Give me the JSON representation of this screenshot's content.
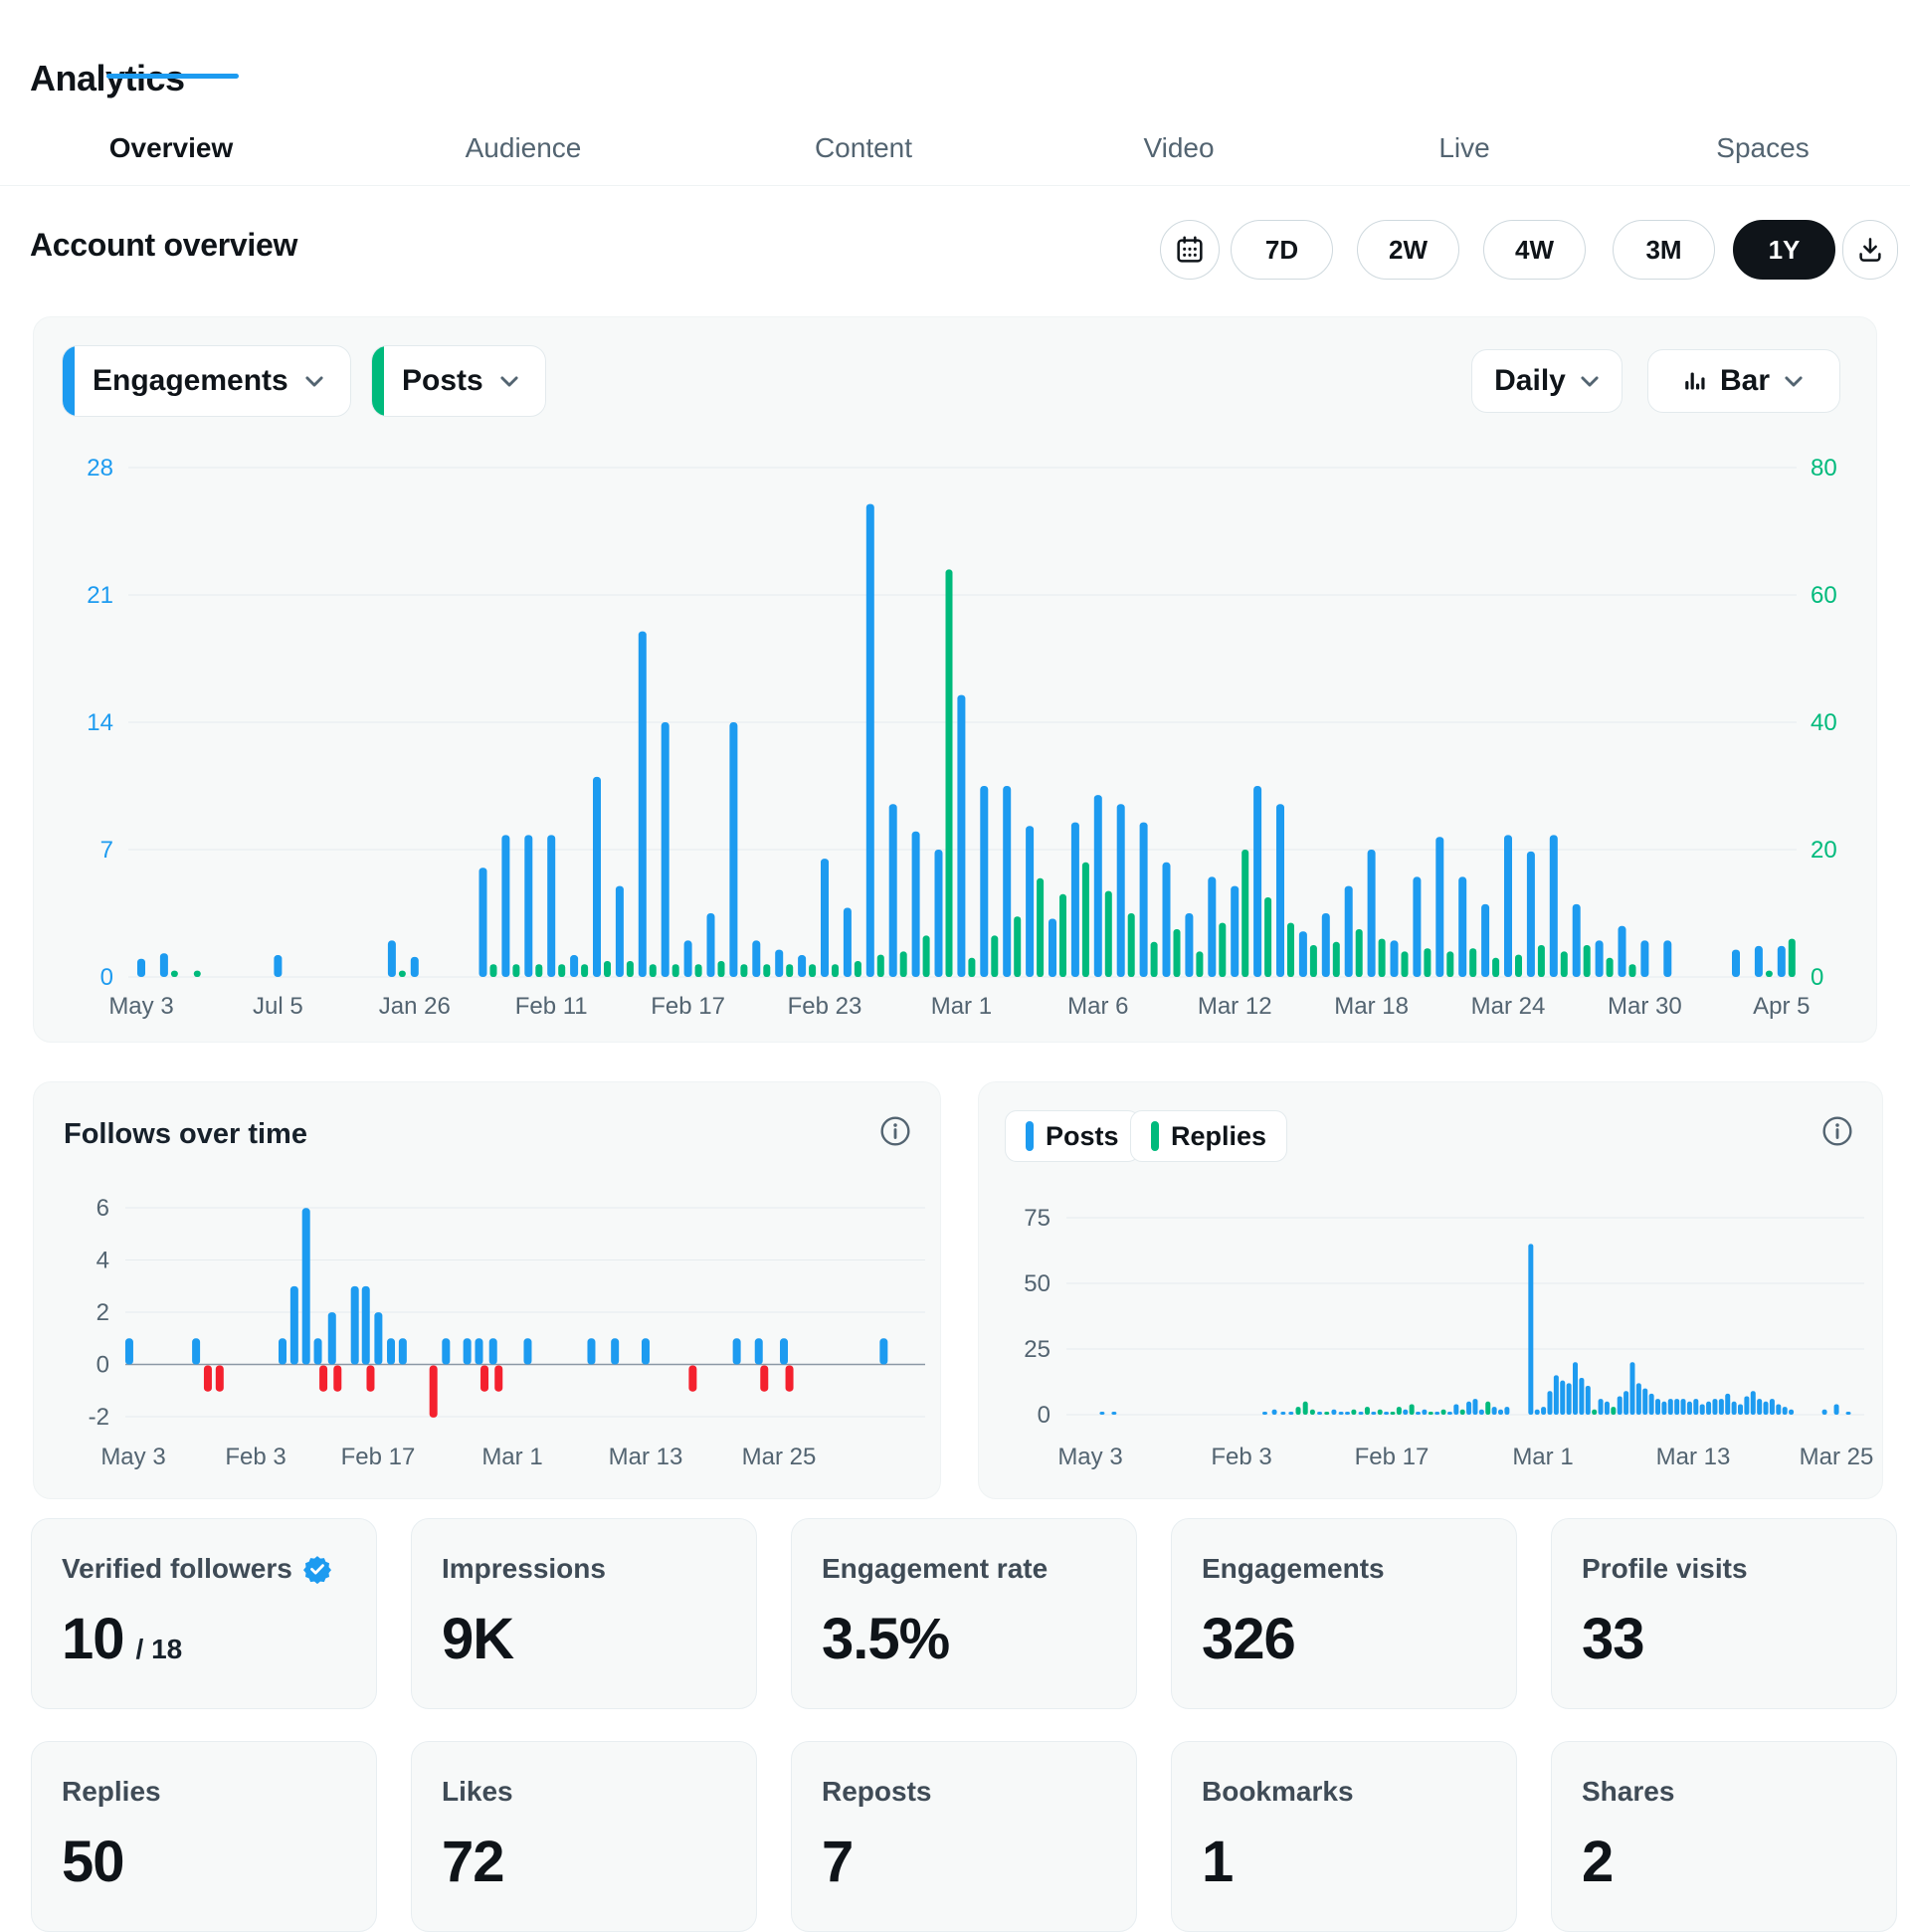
{
  "colors": {
    "blue": "#1d9bf0",
    "green": "#00ba7c",
    "red": "#f4212e",
    "dark": "#0f1419",
    "secondary": "#536471",
    "grid": "#e6ebee"
  },
  "header": {
    "title": "Analytics",
    "tabs": [
      {
        "label": "Overview",
        "active": true
      },
      {
        "label": "Audience",
        "active": false
      },
      {
        "label": "Content",
        "active": false
      },
      {
        "label": "Video",
        "active": false
      },
      {
        "label": "Live",
        "active": false
      },
      {
        "label": "Spaces",
        "active": false
      }
    ]
  },
  "toolbar": {
    "heading": "Account overview",
    "calendar_icon": "calendar-icon",
    "download_icon": "download-icon",
    "date_ranges": [
      {
        "label": "7D",
        "active": false
      },
      {
        "label": "2W",
        "active": false
      },
      {
        "label": "4W",
        "active": false
      },
      {
        "label": "3M",
        "active": false
      },
      {
        "label": "1Y",
        "active": true
      }
    ]
  },
  "chart_data": [
    {
      "id": "main_chart",
      "type": "bar",
      "series_selectors": [
        {
          "label": "Engagements",
          "color": "#1d9bf0"
        },
        {
          "label": "Posts",
          "color": "#00ba7c"
        }
      ],
      "interval_label": "Daily",
      "chart_type_label": "Bar",
      "left_axis": {
        "ticks": [
          "28",
          "21",
          "14",
          "7",
          "0"
        ],
        "max": 28,
        "color": "#1d9bf0"
      },
      "right_axis": {
        "ticks": [
          "80",
          "60",
          "40",
          "20",
          "0"
        ],
        "max": 80,
        "color": "#00ba7c"
      },
      "x_labels": [
        "May 3",
        "Jul 5",
        "Jan 26",
        "Feb 11",
        "Feb 17",
        "Feb 23",
        "Mar 1",
        "Mar 6",
        "Mar 12",
        "Mar 18",
        "Mar 24",
        "Mar 30",
        "Apr 5"
      ],
      "label_slots": [
        0,
        6,
        12,
        18,
        24,
        30,
        36,
        42,
        48,
        54,
        60,
        66,
        72
      ],
      "slot_count": 73,
      "bars": [
        [
          0,
          1,
          0
        ],
        [
          1,
          1.3,
          1
        ],
        [
          2,
          0,
          1
        ],
        [
          6,
          1.2,
          0
        ],
        [
          11,
          2,
          1
        ],
        [
          12,
          1.1,
          0
        ],
        [
          15,
          6,
          2
        ],
        [
          16,
          7.8,
          2
        ],
        [
          17,
          7.8,
          2
        ],
        [
          18,
          7.8,
          2
        ],
        [
          19,
          1.2,
          2
        ],
        [
          20,
          11,
          2.5
        ],
        [
          21,
          5,
          2.5
        ],
        [
          22,
          19,
          2
        ],
        [
          23,
          14,
          2
        ],
        [
          24,
          2,
          2
        ],
        [
          25,
          3.5,
          2.5
        ],
        [
          26,
          14,
          2
        ],
        [
          27,
          2,
          2
        ],
        [
          28,
          1.5,
          2
        ],
        [
          29,
          1.2,
          2
        ],
        [
          30,
          6.5,
          2
        ],
        [
          31,
          3.8,
          2.5
        ],
        [
          32,
          26,
          3.5
        ],
        [
          33,
          9.5,
          4
        ],
        [
          34,
          8,
          6.5
        ],
        [
          35,
          7,
          64
        ],
        [
          36,
          15.5,
          3
        ],
        [
          37,
          10.5,
          6.5
        ],
        [
          38,
          10.5,
          9.5
        ],
        [
          39,
          8.3,
          15.5
        ],
        [
          40,
          3.2,
          13
        ],
        [
          41,
          8.5,
          18
        ],
        [
          42,
          10,
          13.5
        ],
        [
          43,
          9.5,
          10
        ],
        [
          44,
          8.5,
          5.5
        ],
        [
          45,
          6.3,
          7.5
        ],
        [
          46,
          3.5,
          4
        ],
        [
          47,
          5.5,
          8.5
        ],
        [
          48,
          5,
          20
        ],
        [
          49,
          10.5,
          12.5
        ],
        [
          50,
          9.5,
          8.5
        ],
        [
          51,
          2.5,
          5
        ],
        [
          52,
          3.5,
          5.5
        ],
        [
          53,
          5,
          7.5
        ],
        [
          54,
          7,
          6
        ],
        [
          55,
          2,
          4
        ],
        [
          56,
          5.5,
          4.5
        ],
        [
          57,
          7.7,
          4
        ],
        [
          58,
          5.5,
          4.5
        ],
        [
          59,
          4,
          3
        ],
        [
          60,
          7.8,
          3.5
        ],
        [
          61,
          6.9,
          5
        ],
        [
          62,
          7.8,
          4
        ],
        [
          63,
          4,
          5
        ],
        [
          64,
          2,
          3
        ],
        [
          65,
          2.8,
          2
        ],
        [
          66,
          2,
          0
        ],
        [
          67,
          2,
          0
        ],
        [
          70,
          1.5,
          0
        ],
        [
          71,
          1.7,
          1
        ],
        [
          72,
          1.7,
          6
        ]
      ]
    },
    {
      "id": "follows_chart",
      "type": "bar",
      "title": "Follows over time",
      "info_icon": "info-icon",
      "y_ticks": [
        "6",
        "4",
        "2",
        "0",
        "-2"
      ],
      "y_max": 6,
      "y_min": -2,
      "x_labels": [
        "May 3",
        "Feb 3",
        "Feb 17",
        "Mar 1",
        "Mar 13",
        "Mar 25"
      ],
      "up_color": "#1d9bf0",
      "down_color": "#f4212e",
      "bars": [
        [
          0.005,
          1
        ],
        [
          0.09,
          1
        ],
        [
          0.105,
          -1
        ],
        [
          0.12,
          -1
        ],
        [
          0.2,
          1
        ],
        [
          0.215,
          3
        ],
        [
          0.23,
          6
        ],
        [
          0.245,
          1
        ],
        [
          0.252,
          -1
        ],
        [
          0.263,
          2
        ],
        [
          0.27,
          -1
        ],
        [
          0.292,
          3
        ],
        [
          0.306,
          3
        ],
        [
          0.312,
          -1
        ],
        [
          0.322,
          2
        ],
        [
          0.338,
          1
        ],
        [
          0.353,
          1
        ],
        [
          0.392,
          -2
        ],
        [
          0.408,
          1
        ],
        [
          0.435,
          1
        ],
        [
          0.45,
          1
        ],
        [
          0.457,
          -1
        ],
        [
          0.468,
          1
        ],
        [
          0.475,
          -1
        ],
        [
          0.512,
          1
        ],
        [
          0.593,
          1
        ],
        [
          0.623,
          1
        ],
        [
          0.662,
          1
        ],
        [
          0.722,
          -1
        ],
        [
          0.778,
          1
        ],
        [
          0.806,
          1
        ],
        [
          0.813,
          -1
        ],
        [
          0.838,
          1
        ],
        [
          0.845,
          -1
        ],
        [
          0.965,
          1
        ]
      ]
    },
    {
      "id": "posts_replies_chart",
      "type": "bar",
      "legend": [
        {
          "label": "Posts",
          "color": "#1d9bf0"
        },
        {
          "label": "Replies",
          "color": "#00ba7c"
        }
      ],
      "info_icon": "info-icon",
      "y_ticks": [
        "75",
        "50",
        "25",
        "0"
      ],
      "y_max": 75,
      "x_labels": [
        "May 3",
        "Feb 3",
        "Feb 17",
        "Mar 1",
        "Mar 13",
        "Mar 25"
      ],
      "bars": [
        [
          0.045,
          1,
          "p"
        ],
        [
          0.06,
          1,
          "p"
        ],
        [
          0.25,
          1,
          "p"
        ],
        [
          0.262,
          2,
          "p"
        ],
        [
          0.273,
          1,
          "p"
        ],
        [
          0.283,
          1,
          "p"
        ],
        [
          0.292,
          3,
          "r"
        ],
        [
          0.301,
          5,
          "r"
        ],
        [
          0.31,
          2,
          "r"
        ],
        [
          0.319,
          1,
          "p"
        ],
        [
          0.328,
          1,
          "r"
        ],
        [
          0.337,
          2,
          "p"
        ],
        [
          0.346,
          1,
          "p"
        ],
        [
          0.354,
          1,
          "p"
        ],
        [
          0.362,
          2,
          "r"
        ],
        [
          0.371,
          1,
          "p"
        ],
        [
          0.379,
          3,
          "r"
        ],
        [
          0.387,
          1,
          "p"
        ],
        [
          0.395,
          2,
          "r"
        ],
        [
          0.403,
          1,
          "p"
        ],
        [
          0.411,
          1,
          "r"
        ],
        [
          0.419,
          3,
          "r"
        ],
        [
          0.427,
          2,
          "p"
        ],
        [
          0.435,
          4,
          "r"
        ],
        [
          0.443,
          1,
          "p"
        ],
        [
          0.451,
          2,
          "p"
        ],
        [
          0.459,
          1,
          "r"
        ],
        [
          0.467,
          1,
          "p"
        ],
        [
          0.475,
          2,
          "r"
        ],
        [
          0.483,
          1,
          "p"
        ],
        [
          0.491,
          4,
          "p"
        ],
        [
          0.499,
          2,
          "r"
        ],
        [
          0.507,
          5,
          "p"
        ],
        [
          0.515,
          6,
          "p"
        ],
        [
          0.523,
          2,
          "p"
        ],
        [
          0.531,
          5,
          "r"
        ],
        [
          0.539,
          3,
          "p"
        ],
        [
          0.547,
          2,
          "p"
        ],
        [
          0.555,
          3,
          "p"
        ],
        [
          0.585,
          65,
          "p"
        ],
        [
          0.593,
          2,
          "p"
        ],
        [
          0.601,
          3,
          "p"
        ],
        [
          0.609,
          9,
          "p"
        ],
        [
          0.617,
          15,
          "p"
        ],
        [
          0.625,
          13,
          "p"
        ],
        [
          0.633,
          12,
          "p"
        ],
        [
          0.641,
          20,
          "p"
        ],
        [
          0.649,
          14,
          "p"
        ],
        [
          0.657,
          11,
          "p"
        ],
        [
          0.665,
          2,
          "r"
        ],
        [
          0.673,
          6,
          "p"
        ],
        [
          0.681,
          5,
          "p"
        ],
        [
          0.689,
          3,
          "r"
        ],
        [
          0.697,
          7,
          "p"
        ],
        [
          0.705,
          9,
          "p"
        ],
        [
          0.713,
          20,
          "p"
        ],
        [
          0.721,
          12,
          "p"
        ],
        [
          0.729,
          10,
          "p"
        ],
        [
          0.737,
          8,
          "p"
        ],
        [
          0.745,
          6,
          "p"
        ],
        [
          0.753,
          5,
          "p"
        ],
        [
          0.761,
          6,
          "p"
        ],
        [
          0.769,
          6,
          "p"
        ],
        [
          0.777,
          6,
          "p"
        ],
        [
          0.785,
          5,
          "p"
        ],
        [
          0.793,
          6,
          "p"
        ],
        [
          0.801,
          4,
          "p"
        ],
        [
          0.809,
          5,
          "p"
        ],
        [
          0.817,
          6,
          "p"
        ],
        [
          0.825,
          6,
          "p"
        ],
        [
          0.833,
          8,
          "p"
        ],
        [
          0.841,
          5,
          "p"
        ],
        [
          0.849,
          4,
          "p"
        ],
        [
          0.857,
          7,
          "p"
        ],
        [
          0.865,
          9,
          "p"
        ],
        [
          0.873,
          6,
          "p"
        ],
        [
          0.881,
          5,
          "p"
        ],
        [
          0.889,
          6,
          "p"
        ],
        [
          0.897,
          4,
          "p"
        ],
        [
          0.905,
          3,
          "p"
        ],
        [
          0.913,
          2,
          "p"
        ],
        [
          0.955,
          2,
          "p"
        ],
        [
          0.97,
          4,
          "p"
        ],
        [
          0.985,
          1,
          "p"
        ]
      ]
    }
  ],
  "metric_cards": [
    {
      "label": "Verified followers",
      "value": "10",
      "suffix": "/ 18",
      "badge": true
    },
    {
      "label": "Impressions",
      "value": "9K",
      "suffix": "",
      "badge": false
    },
    {
      "label": "Engagement rate",
      "value": "3.5%",
      "suffix": "",
      "badge": false
    },
    {
      "label": "Engagements",
      "value": "326",
      "suffix": "",
      "badge": false
    },
    {
      "label": "Profile visits",
      "value": "33",
      "suffix": "",
      "badge": false
    },
    {
      "label": "Replies",
      "value": "50",
      "suffix": "",
      "badge": false
    },
    {
      "label": "Likes",
      "value": "72",
      "suffix": "",
      "badge": false
    },
    {
      "label": "Reposts",
      "value": "7",
      "suffix": "",
      "badge": false
    },
    {
      "label": "Bookmarks",
      "value": "1",
      "suffix": "",
      "badge": false
    },
    {
      "label": "Shares",
      "value": "2",
      "suffix": "",
      "badge": false
    }
  ]
}
